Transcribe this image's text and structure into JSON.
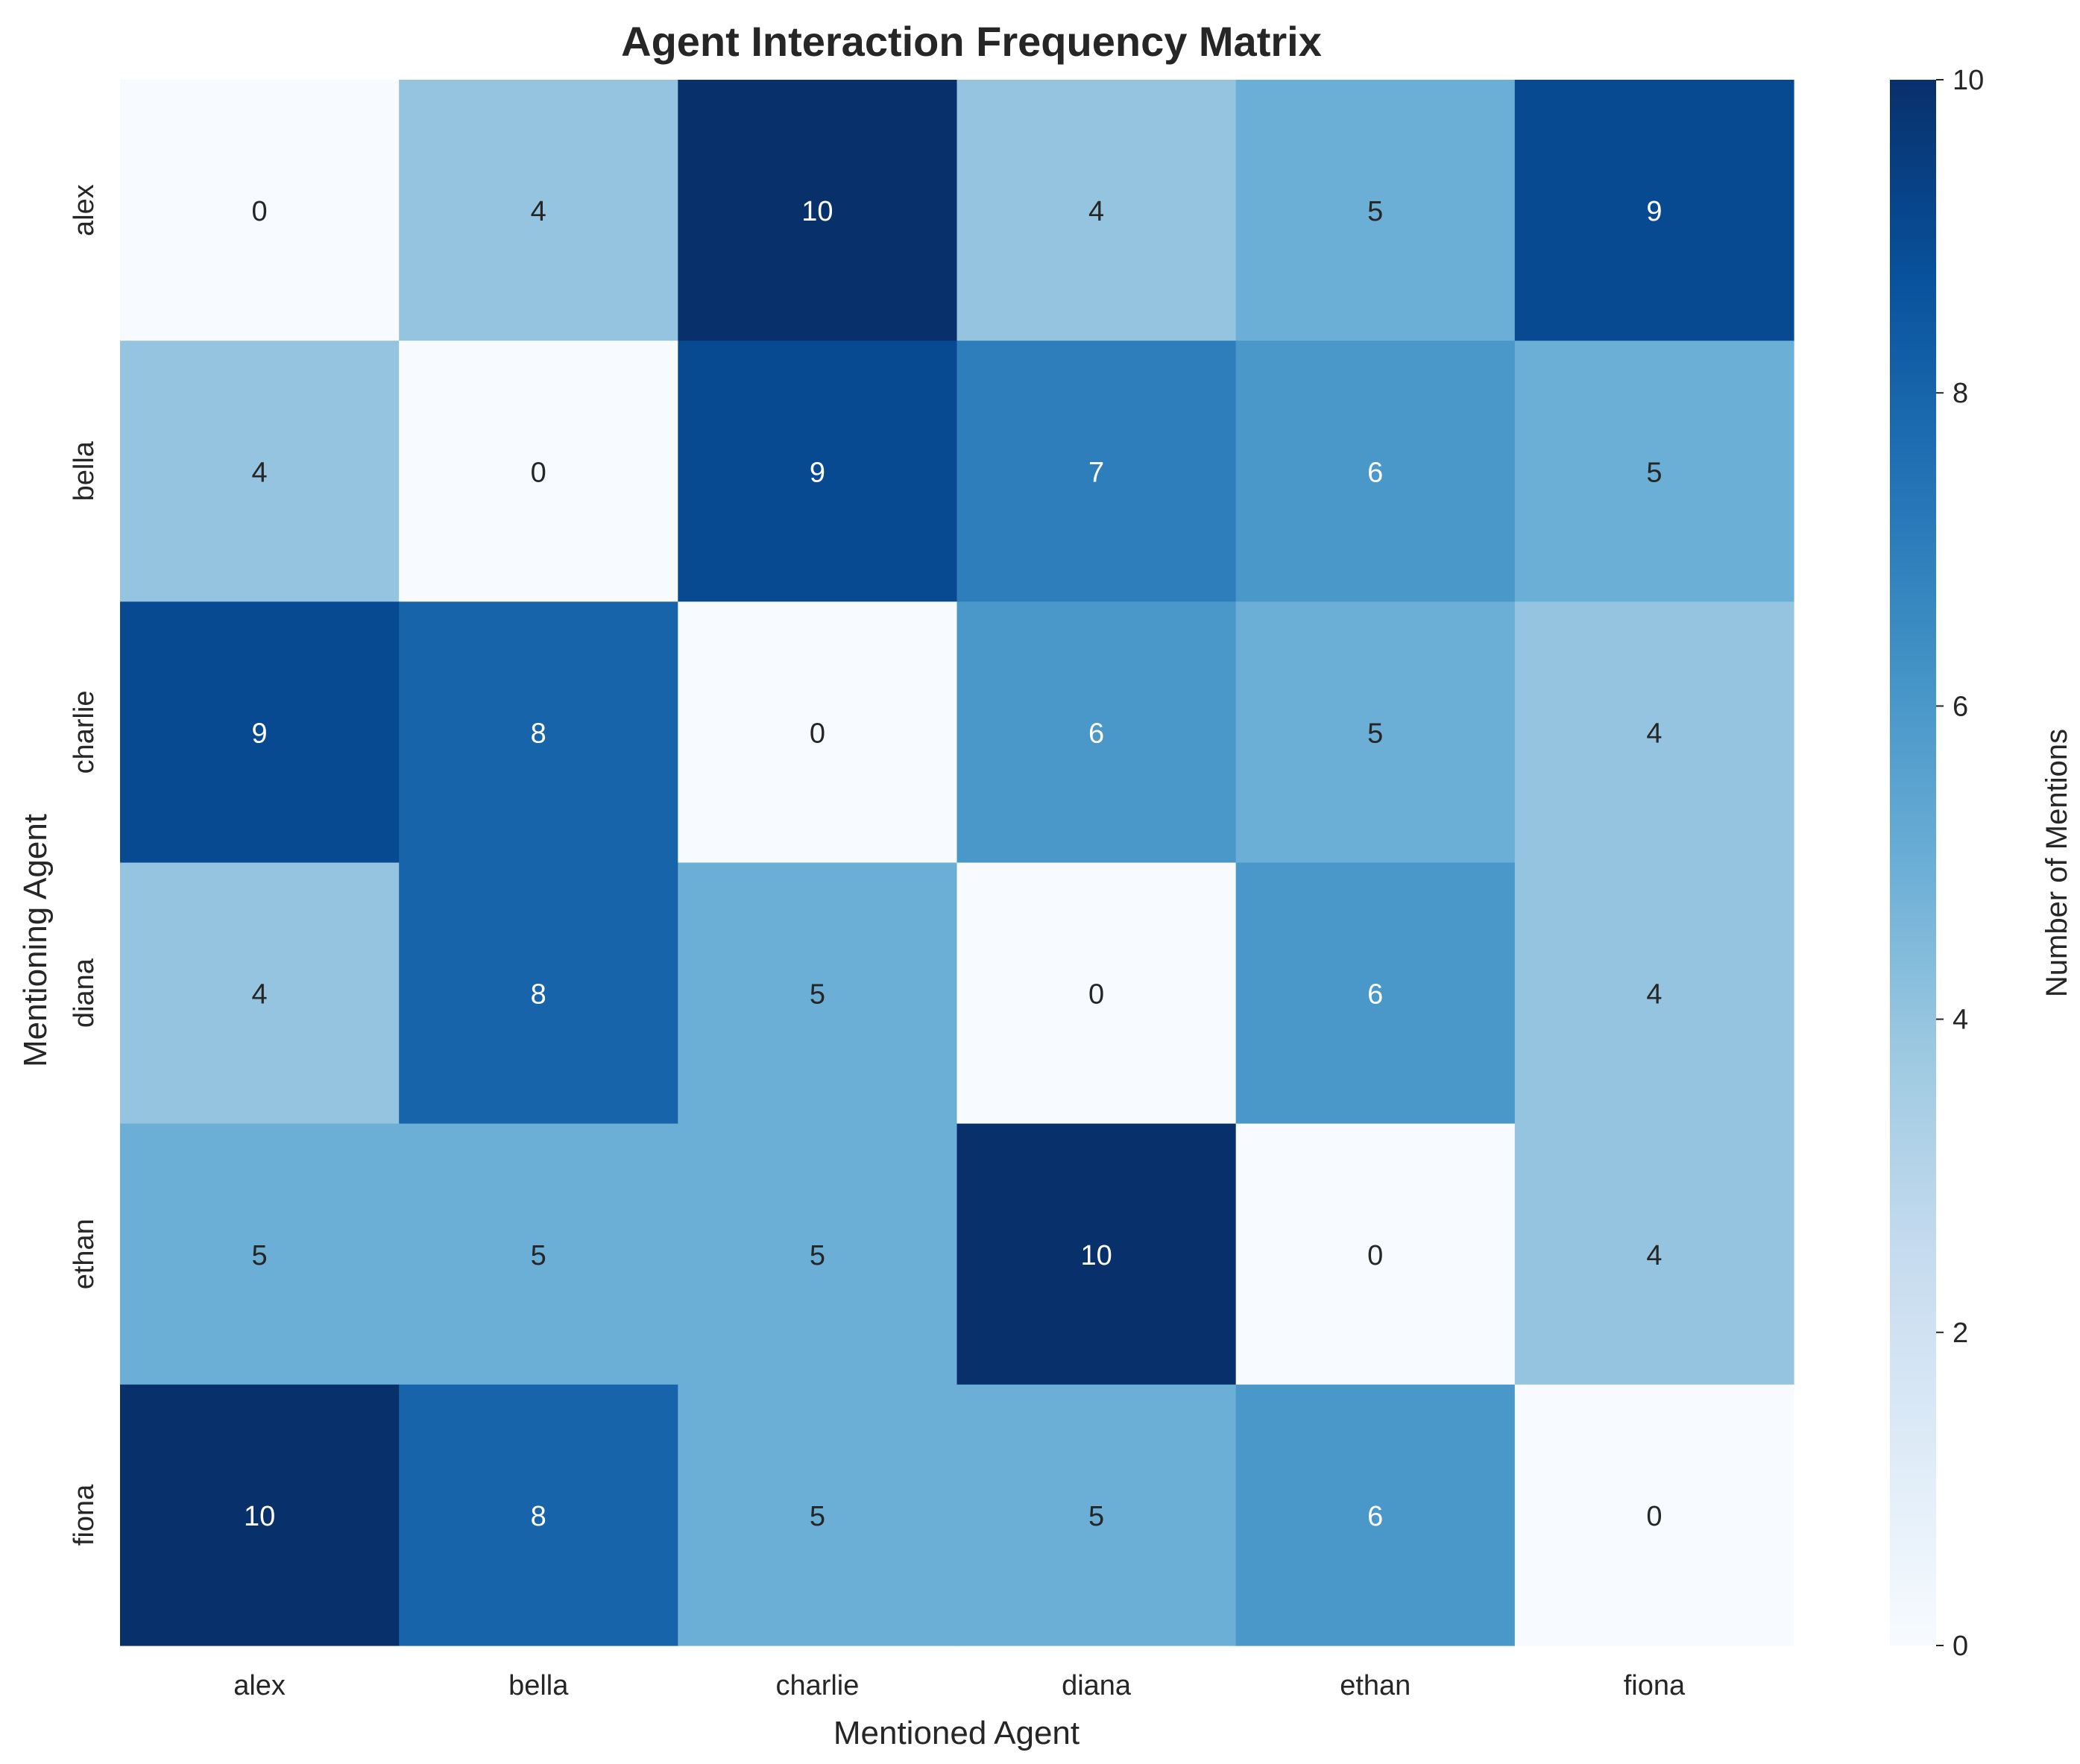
{
  "chart_data": {
    "type": "heatmap",
    "title": "Agent Interaction Frequency Matrix",
    "xlabel": "Mentioned Agent",
    "ylabel": "Mentioning Agent",
    "x_categories": [
      "alex",
      "bella",
      "charlie",
      "diana",
      "ethan",
      "fiona"
    ],
    "y_categories": [
      "alex",
      "bella",
      "charlie",
      "diana",
      "ethan",
      "fiona"
    ],
    "values": [
      [
        0,
        4,
        10,
        4,
        5,
        9
      ],
      [
        4,
        0,
        9,
        7,
        6,
        5
      ],
      [
        9,
        8,
        0,
        6,
        5,
        4
      ],
      [
        4,
        8,
        5,
        0,
        6,
        4
      ],
      [
        5,
        5,
        5,
        10,
        0,
        4
      ],
      [
        10,
        8,
        5,
        5,
        6,
        0
      ]
    ],
    "colorbar": {
      "label": "Number of Mentions",
      "range": [
        0,
        10
      ],
      "ticks": [
        0,
        2,
        4,
        6,
        8,
        10
      ]
    },
    "colormap": "Blues",
    "colormap_stops": [
      "#f7fbff",
      "#deebf7",
      "#c6dbef",
      "#9ecae1",
      "#6baed6",
      "#4292c6",
      "#2171b5",
      "#08519c",
      "#08306b"
    ],
    "annotation_colors": {
      "light": "#ffffff",
      "dark": "#262626"
    }
  }
}
